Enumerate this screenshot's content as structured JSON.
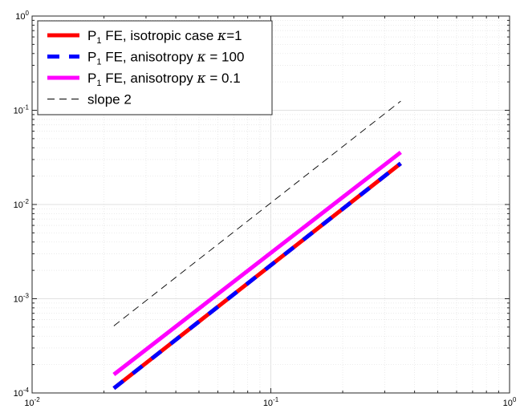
{
  "chart_data": {
    "type": "line",
    "title": "",
    "xlabel": "",
    "ylabel": "",
    "xscale": "log",
    "yscale": "log",
    "xlim": [
      0.01,
      1
    ],
    "ylim": [
      0.0001,
      1
    ],
    "grid": true,
    "minor_grid": true,
    "legend_position": "top-left",
    "x_ticks": [
      {
        "value": 0.01,
        "base": "10",
        "exp": "-2"
      },
      {
        "value": 0.1,
        "base": "10",
        "exp": "-1"
      },
      {
        "value": 1,
        "base": "10",
        "exp": "0"
      }
    ],
    "y_ticks": [
      {
        "value": 0.0001,
        "base": "10",
        "exp": "-4"
      },
      {
        "value": 0.001,
        "base": "10",
        "exp": "-3"
      },
      {
        "value": 0.01,
        "base": "10",
        "exp": "-2"
      },
      {
        "value": 0.1,
        "base": "10",
        "exp": "-1"
      },
      {
        "value": 1,
        "base": "10",
        "exp": "0"
      }
    ],
    "series": [
      {
        "name": "P1 FE, isotropic case κ=1",
        "legend": {
          "pre": "P",
          "sub": "1",
          "mid": " FE, isotropic case ",
          "greek": "κ",
          "post": "=1"
        },
        "color": "#ff0000",
        "style": "solid",
        "x": [
          0.022,
          0.35
        ],
        "y": [
          0.000112,
          0.0273
        ]
      },
      {
        "name": "P1 FE, anisotropy κ = 100",
        "legend": {
          "pre": " P",
          "sub": "1",
          "mid": " FE, anisotropy ",
          "greek": "κ",
          "post": " = 100"
        },
        "color": "#0000ff",
        "style": "dashed",
        "x": [
          0.022,
          0.35
        ],
        "y": [
          0.000112,
          0.0273
        ]
      },
      {
        "name": "P1 FE, anisotropy κ = 0.1",
        "legend": {
          "pre": " P",
          "sub": "1",
          "mid": " FE, anisotropy ",
          "greek": "κ",
          "post": " = 0.1"
        },
        "color": "#ff00ff",
        "style": "solid",
        "x": [
          0.022,
          0.35
        ],
        "y": [
          0.000157,
          0.0358
        ]
      },
      {
        "name": "slope 2",
        "legend": {
          "pre": "slope 2",
          "sub": "",
          "mid": "",
          "greek": "",
          "post": ""
        },
        "color": "#000000",
        "style": "thin-dashed",
        "x": [
          0.022,
          0.35
        ],
        "y": [
          0.000515,
          0.125
        ]
      }
    ]
  }
}
